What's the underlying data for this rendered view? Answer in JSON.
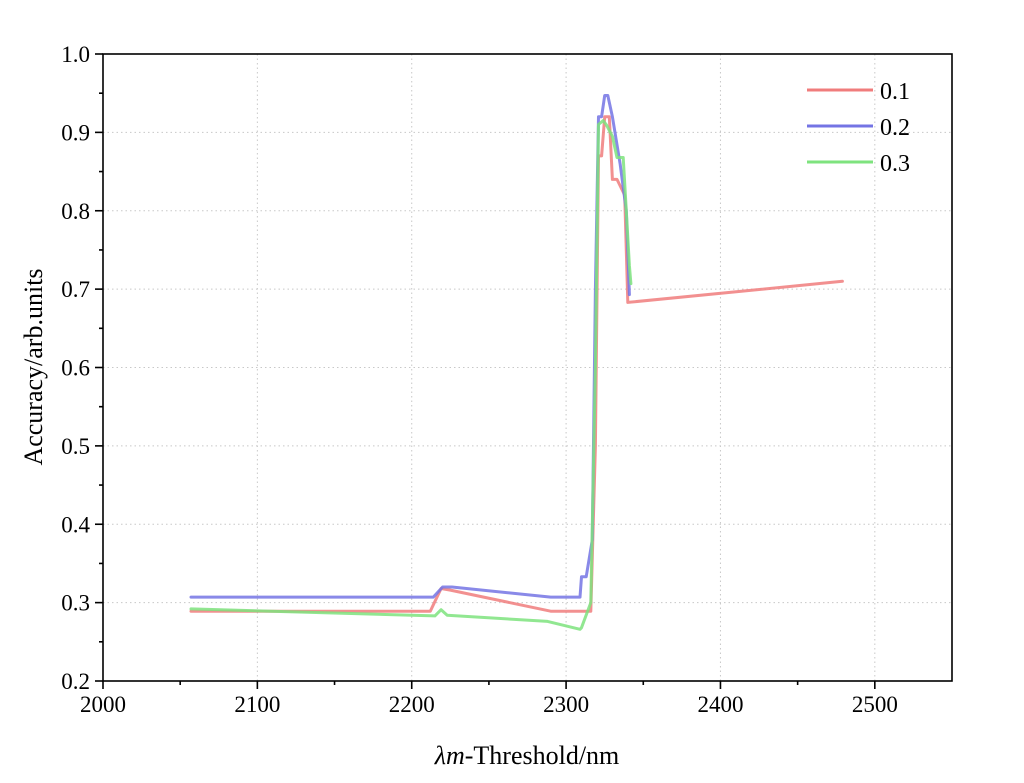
{
  "chart_data": {
    "type": "line",
    "xlabel_italic": "λm",
    "xlabel_rest": "-Threshold/nm",
    "ylabel": "Accuracy/arb.units",
    "xlim": [
      2000,
      2550
    ],
    "ylim": [
      0.2,
      1.0
    ],
    "x_ticks": [
      2000,
      2100,
      2200,
      2300,
      2400,
      2500
    ],
    "y_ticks": [
      0.2,
      0.3,
      0.4,
      0.5,
      0.6,
      0.7,
      0.8,
      0.9,
      1.0
    ],
    "x_tick_labels": [
      "2000",
      "2100",
      "2200",
      "2300",
      "2400",
      "2500"
    ],
    "y_tick_labels": [
      "0.2",
      "0.3",
      "0.4",
      "0.5",
      "0.6",
      "0.7",
      "0.8",
      "0.9",
      "1.0"
    ],
    "grid": true,
    "legend_position": "top-right",
    "series": [
      {
        "name": "0.1",
        "color": "#f07c7c",
        "points": [
          [
            2057,
            0.289
          ],
          [
            2212,
            0.289
          ],
          [
            2219,
            0.318
          ],
          [
            2225,
            0.316
          ],
          [
            2290,
            0.289
          ],
          [
            2316,
            0.289
          ],
          [
            2319,
            0.5
          ],
          [
            2321,
            0.87
          ],
          [
            2323,
            0.87
          ],
          [
            2325,
            0.92
          ],
          [
            2328,
            0.92
          ],
          [
            2330,
            0.84
          ],
          [
            2333,
            0.84
          ],
          [
            2338,
            0.82
          ],
          [
            2340,
            0.683
          ],
          [
            2479,
            0.71
          ]
        ]
      },
      {
        "name": "0.2",
        "color": "#7474e4",
        "points": [
          [
            2057,
            0.307
          ],
          [
            2214,
            0.307
          ],
          [
            2220,
            0.32
          ],
          [
            2226,
            0.32
          ],
          [
            2290,
            0.307
          ],
          [
            2309,
            0.307
          ],
          [
            2310,
            0.333
          ],
          [
            2313,
            0.333
          ],
          [
            2317,
            0.38
          ],
          [
            2319,
            0.7
          ],
          [
            2321,
            0.92
          ],
          [
            2323,
            0.92
          ],
          [
            2325,
            0.947
          ],
          [
            2327,
            0.947
          ],
          [
            2330,
            0.92
          ],
          [
            2335,
            0.86
          ],
          [
            2339,
            0.8
          ],
          [
            2341,
            0.693
          ]
        ]
      },
      {
        "name": "0.3",
        "color": "#7ee37e",
        "points": [
          [
            2057,
            0.292
          ],
          [
            2215,
            0.283
          ],
          [
            2219,
            0.291
          ],
          [
            2223,
            0.284
          ],
          [
            2288,
            0.276
          ],
          [
            2309,
            0.266
          ],
          [
            2310,
            0.268
          ],
          [
            2316,
            0.3
          ],
          [
            2319,
            0.6
          ],
          [
            2321,
            0.91
          ],
          [
            2324,
            0.915
          ],
          [
            2326,
            0.91
          ],
          [
            2330,
            0.895
          ],
          [
            2333,
            0.868
          ],
          [
            2337,
            0.868
          ],
          [
            2339,
            0.8
          ],
          [
            2341,
            0.73
          ],
          [
            2342,
            0.707
          ]
        ]
      }
    ]
  }
}
